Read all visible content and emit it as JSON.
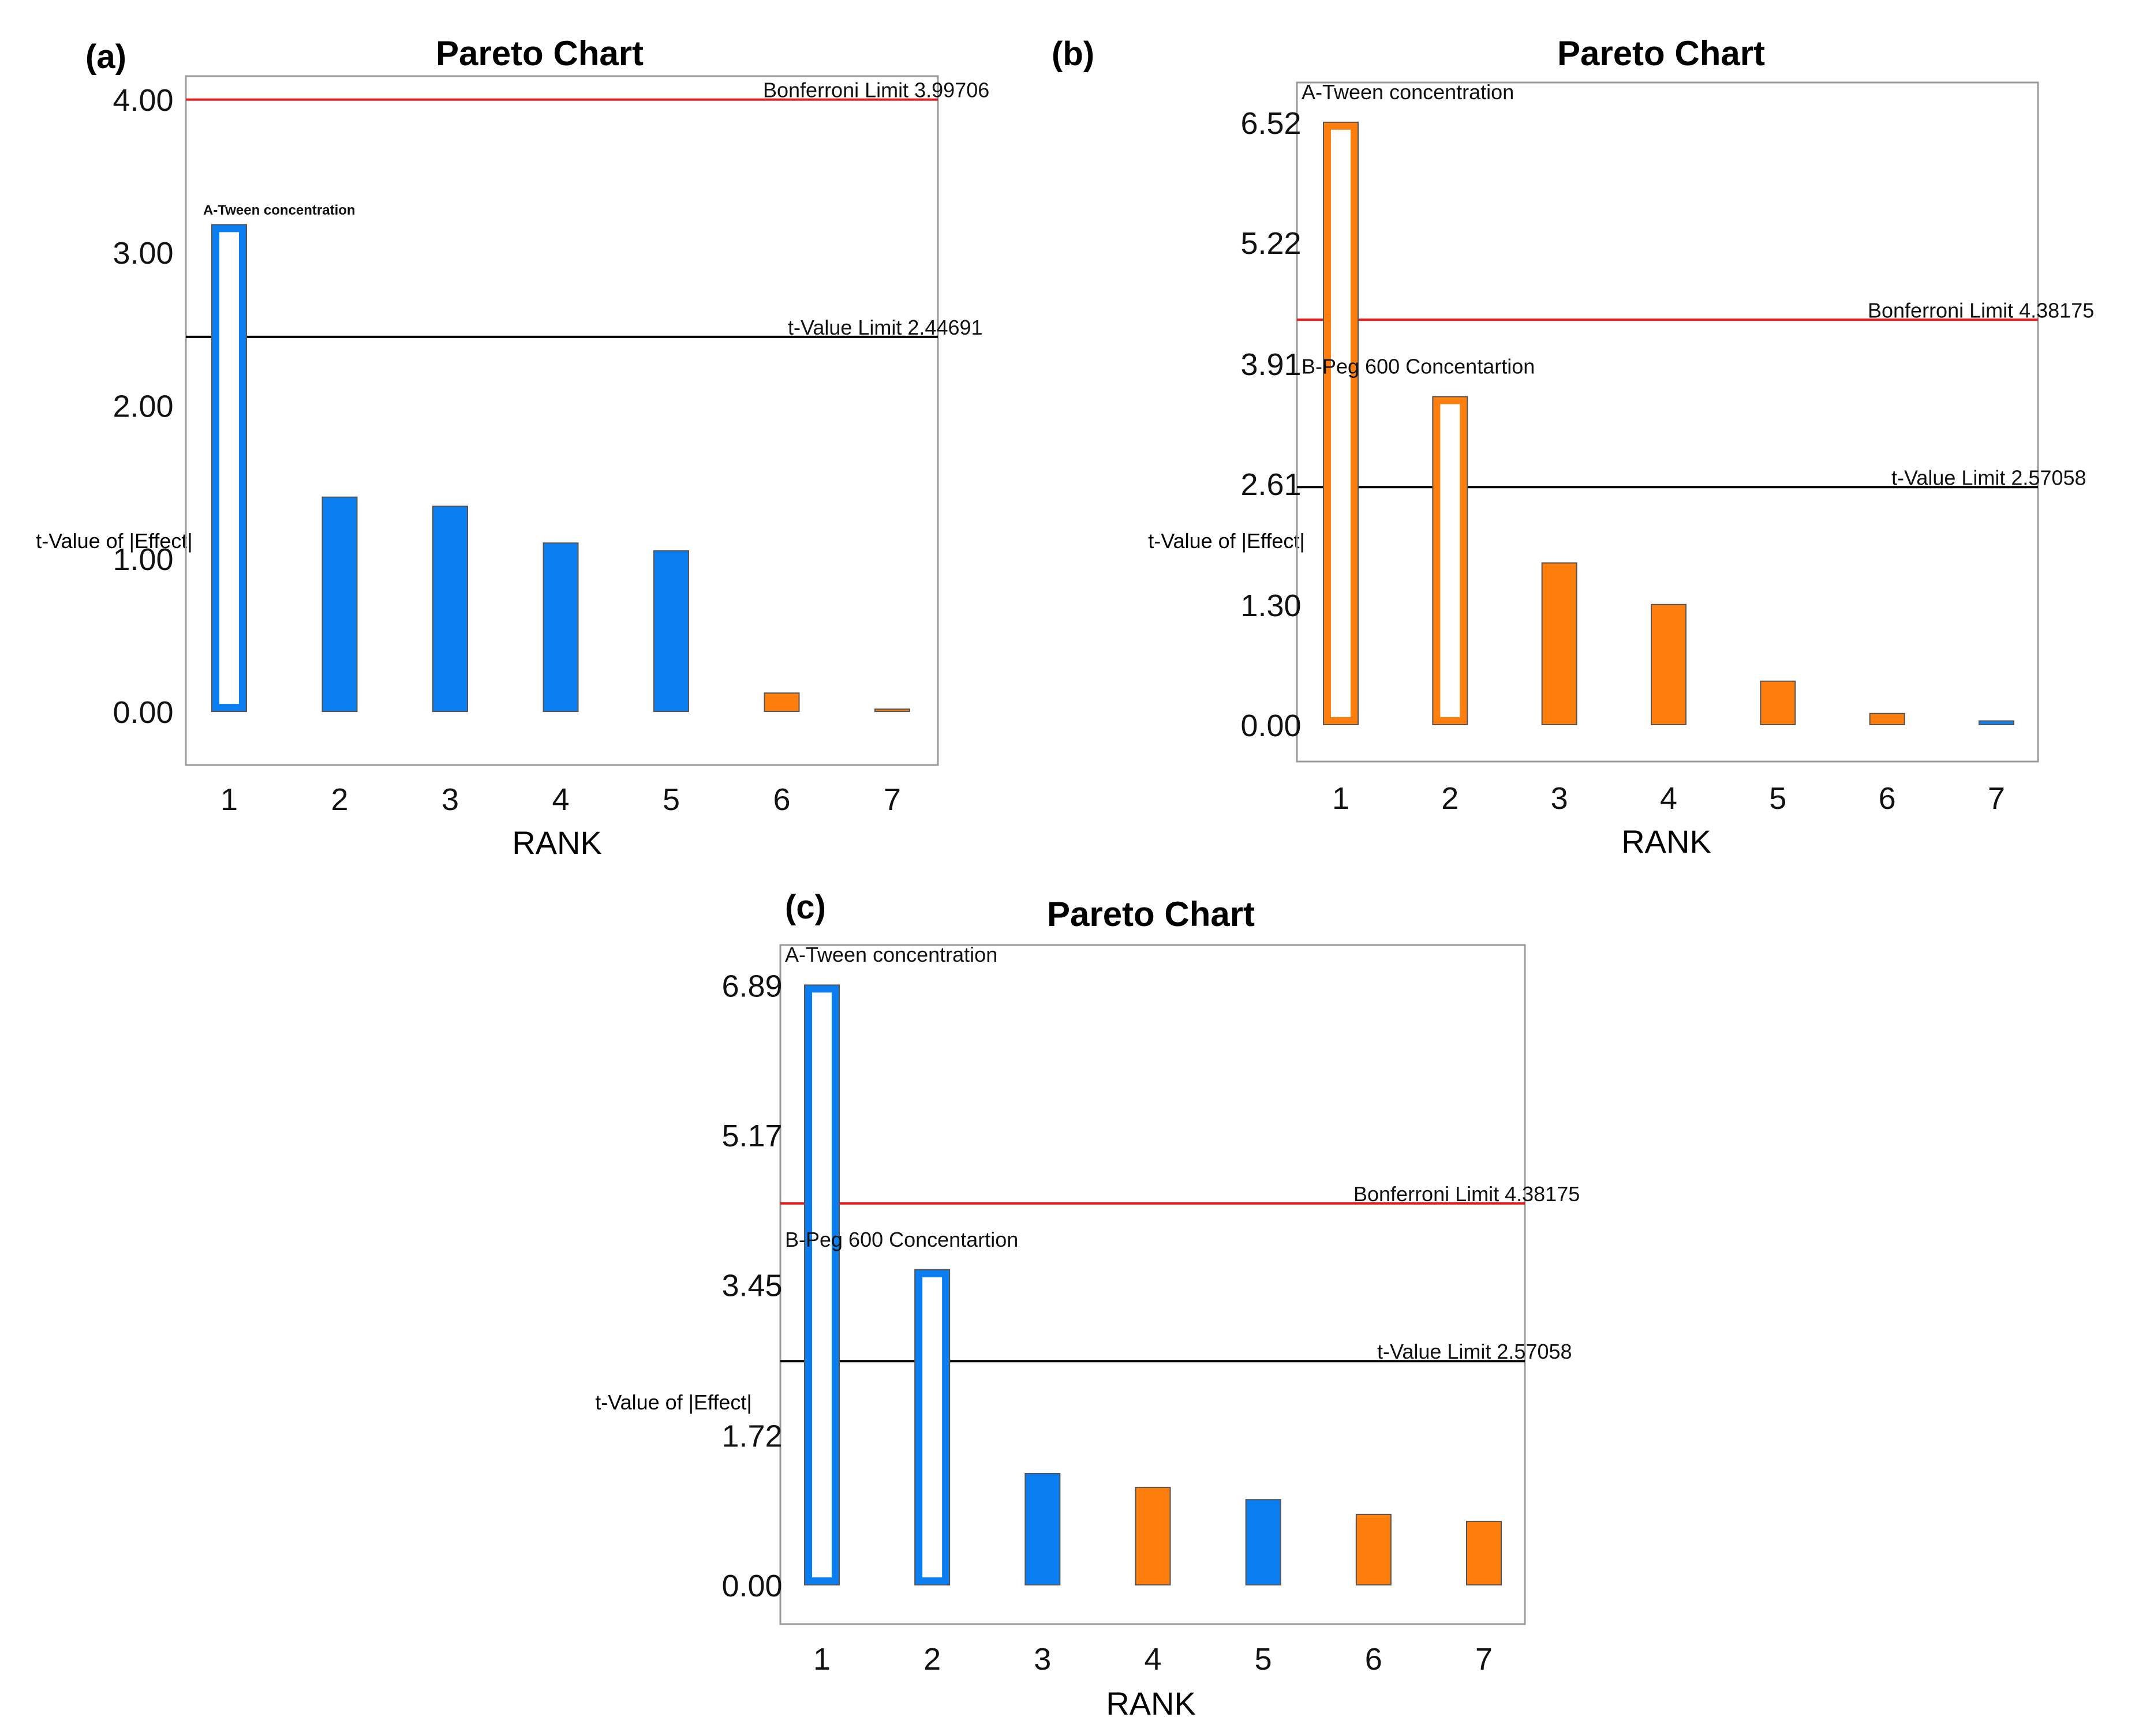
{
  "figure": {
    "panels": [
      {
        "id": "a",
        "label": "(a)",
        "title": "Pareto Chart",
        "xlabel": "RANK",
        "ylabel": "t-Value of |Effect|",
        "yticks": [
          "0.00",
          "1.00",
          "2.00",
          "3.00",
          "4.00"
        ],
        "xticks": [
          "1",
          "2",
          "3",
          "4",
          "5",
          "6",
          "7"
        ]
      },
      {
        "id": "b",
        "label": "(b)",
        "title": "Pareto Chart",
        "xlabel": "RANK",
        "ylabel": "t-Value of |Effect|",
        "yticks": [
          "0.00",
          "1.30",
          "2.61",
          "3.91",
          "5.22",
          "6.52"
        ],
        "xticks": [
          "1",
          "2",
          "3",
          "4",
          "5",
          "6",
          "7"
        ]
      },
      {
        "id": "c",
        "label": "(c)",
        "title": "Pareto Chart",
        "xlabel": "RANK",
        "ylabel": "t-Value of |Effect|",
        "yticks": [
          "0.00",
          "1.72",
          "3.45",
          "5.17",
          "6.89"
        ],
        "xticks": [
          "1",
          "2",
          "3",
          "4",
          "5",
          "6",
          "7"
        ]
      }
    ]
  },
  "colors": {
    "positive": "#0A7EF0",
    "negative": "#FF7F0E",
    "bonferroni": "#E41A1C",
    "tlimit": "#000000",
    "frame": "#9a9a9a",
    "text": "#111111"
  },
  "chart_data": [
    {
      "type": "bar",
      "panel": "a",
      "title": "Pareto Chart",
      "xlabel": "RANK",
      "ylabel": "t-Value of |Effect|",
      "ylim": [
        -0.35,
        4.15
      ],
      "categories": [
        "1",
        "2",
        "3",
        "4",
        "5",
        "6",
        "7"
      ],
      "values": [
        3.18,
        1.4,
        1.34,
        1.1,
        1.05,
        0.12,
        0.01
      ],
      "effect_sign": [
        "positive",
        "positive",
        "positive",
        "positive",
        "positive",
        "negative",
        "negative"
      ],
      "highlighted_ranks": [
        1
      ],
      "bar_labels": [
        {
          "rank": 1,
          "text": "A-Tween concentration"
        }
      ],
      "reference_lines": [
        {
          "name": "bonferroni",
          "label": "Bonferroni Limit 3.99706",
          "value": 3.99706
        },
        {
          "name": "t-value",
          "label": "t-Value Limit 2.44691",
          "value": 2.44691
        }
      ]
    },
    {
      "type": "bar",
      "panel": "b",
      "title": "Pareto Chart",
      "xlabel": "RANK",
      "ylabel": "t-Value of |Effect|",
      "ylim": [
        -0.4,
        6.95
      ],
      "categories": [
        "1",
        "2",
        "3",
        "4",
        "5",
        "6",
        "7"
      ],
      "values": [
        6.52,
        3.55,
        1.75,
        1.3,
        0.47,
        0.12,
        0.04
      ],
      "effect_sign": [
        "negative",
        "negative",
        "negative",
        "negative",
        "negative",
        "negative",
        "positive"
      ],
      "highlighted_ranks": [
        1,
        2
      ],
      "bar_labels": [
        {
          "rank": 1,
          "text": "A-Tween concentration"
        },
        {
          "rank": 2,
          "text": "B-Peg 600 Concentartion"
        }
      ],
      "reference_lines": [
        {
          "name": "bonferroni",
          "label": "Bonferroni Limit 4.38175",
          "value": 4.38175
        },
        {
          "name": "t-value",
          "label": "t-Value Limit 2.57058",
          "value": 2.57058
        }
      ]
    },
    {
      "type": "bar",
      "panel": "c",
      "title": "Pareto Chart",
      "xlabel": "RANK",
      "ylabel": "t-Value of |Effect|",
      "ylim": [
        -0.45,
        7.35
      ],
      "categories": [
        "1",
        "2",
        "3",
        "4",
        "5",
        "6",
        "7"
      ],
      "values": [
        6.89,
        3.62,
        1.28,
        1.12,
        0.98,
        0.81,
        0.73
      ],
      "effect_sign": [
        "positive",
        "positive",
        "positive",
        "negative",
        "positive",
        "negative",
        "negative"
      ],
      "highlighted_ranks": [
        1,
        2
      ],
      "bar_labels": [
        {
          "rank": 1,
          "text": "A-Tween concentration"
        },
        {
          "rank": 2,
          "text": "B-Peg 600 Concentartion"
        }
      ],
      "reference_lines": [
        {
          "name": "bonferroni",
          "label": "Bonferroni Limit 4.38175",
          "value": 4.38175
        },
        {
          "name": "t-value",
          "label": "t-Value Limit 2.57058",
          "value": 2.57058
        }
      ]
    }
  ]
}
